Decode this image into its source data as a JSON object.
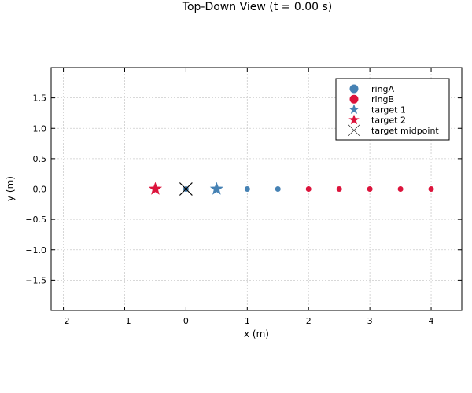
{
  "chart_data": {
    "type": "scatter",
    "title": "Top-Down View (t = 0.00 s)",
    "xlabel": "x (m)",
    "ylabel": "y (m)",
    "xlim": [
      -2.2,
      4.5
    ],
    "ylim": [
      -2.0,
      2.0
    ],
    "xticks": [
      -2,
      -1,
      0,
      1,
      2,
      3,
      4
    ],
    "xtick_labels": [
      "−2",
      "−1",
      "0",
      "1",
      "2",
      "3",
      "4"
    ],
    "yticks": [
      -1.5,
      -1.0,
      -0.5,
      0.0,
      0.5,
      1.0,
      1.5
    ],
    "ytick_labels": [
      "−1.5",
      "−1.0",
      "−0.5",
      "0.0",
      "0.5",
      "1.0",
      "1.5"
    ],
    "grid": true,
    "legend_position": "top-right",
    "series": [
      {
        "name": "ringA",
        "marker": "circle",
        "color": "#4682b4",
        "connected": true,
        "x": [
          0.0,
          0.5,
          1.0,
          1.5
        ],
        "y": [
          0,
          0,
          0,
          0
        ]
      },
      {
        "name": "ringB",
        "marker": "circle",
        "color": "#dc143c",
        "connected": true,
        "x": [
          2.0,
          2.5,
          3.0,
          3.5,
          4.0
        ],
        "y": [
          0,
          0,
          0,
          0,
          0
        ]
      },
      {
        "name": "target 1",
        "marker": "star",
        "color": "#4682b4",
        "x": [
          0.5
        ],
        "y": [
          0
        ]
      },
      {
        "name": "target 2",
        "marker": "star",
        "color": "#dc143c",
        "x": [
          -0.5
        ],
        "y": [
          0
        ]
      },
      {
        "name": "target midpoint",
        "marker": "x",
        "color": "#000000",
        "x": [
          0.0
        ],
        "y": [
          0
        ]
      }
    ]
  }
}
